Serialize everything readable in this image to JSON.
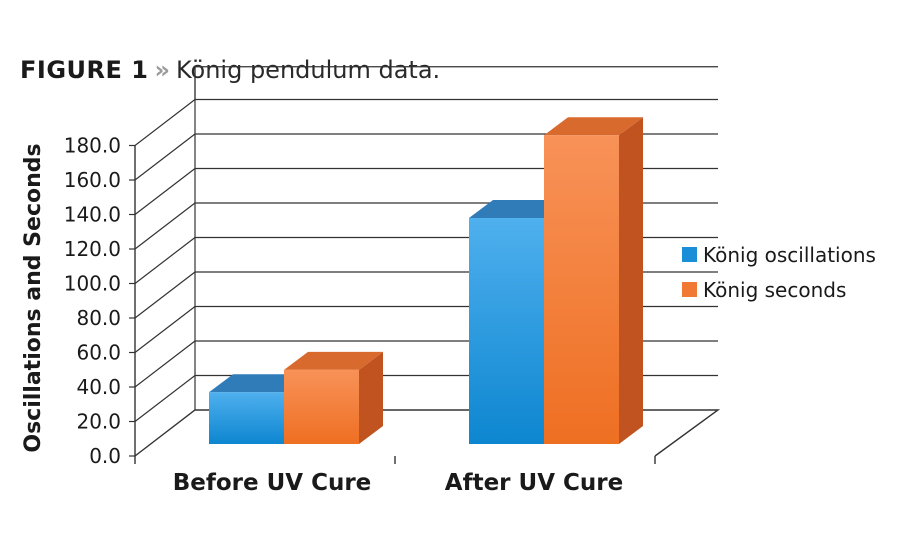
{
  "figure": {
    "label": "FIGURE 1",
    "separator": "»",
    "caption": "König pendulum data."
  },
  "chart_data": {
    "type": "bar",
    "style": "3d",
    "categories": [
      "Before UV Cure",
      "After UV Cure"
    ],
    "series": [
      {
        "name": "König oscillations",
        "values": [
          30,
          131
        ],
        "color": "#1a8fd8"
      },
      {
        "name": "König seconds",
        "values": [
          43,
          179
        ],
        "color": "#f07a33"
      }
    ],
    "ylabel": "Oscillations and Seconds",
    "xlabel": "",
    "ylim": [
      0,
      180
    ],
    "yticks": [
      "0.0",
      "20.0",
      "40.0",
      "60.0",
      "80.0",
      "100.0",
      "120.0",
      "140.0",
      "160.0",
      "180.0"
    ],
    "grid": true,
    "legend_position": "right"
  }
}
